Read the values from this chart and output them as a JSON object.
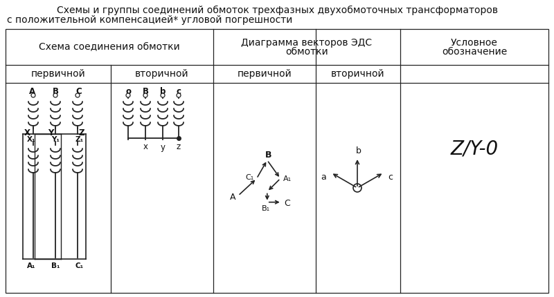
{
  "title_line1": "Схемы и группы соединений обмоток трехфазных двухобмоточных трансформаторов",
  "title_line2": "с положительной компенсацией* угловой погрешности",
  "header1": "Схема соединения обмотки",
  "header2a": "Диаграмма векторов ЭДС",
  "header2b": "обмотки",
  "header3a": "Условное",
  "header3b": "обозначение",
  "sub1a": "первичной",
  "sub1b": "вторичной",
  "sub2a": "первичной",
  "sub2b": "вторичной",
  "symbol": "Z/Y-0",
  "bg_color": "#ffffff",
  "line_color": "#222222",
  "text_color": "#111111",
  "title_fs": 10,
  "header_fs": 10,
  "sub_fs": 10,
  "label_fs": 8.5,
  "small_label_fs": 7.5,
  "symbol_fs": 20
}
